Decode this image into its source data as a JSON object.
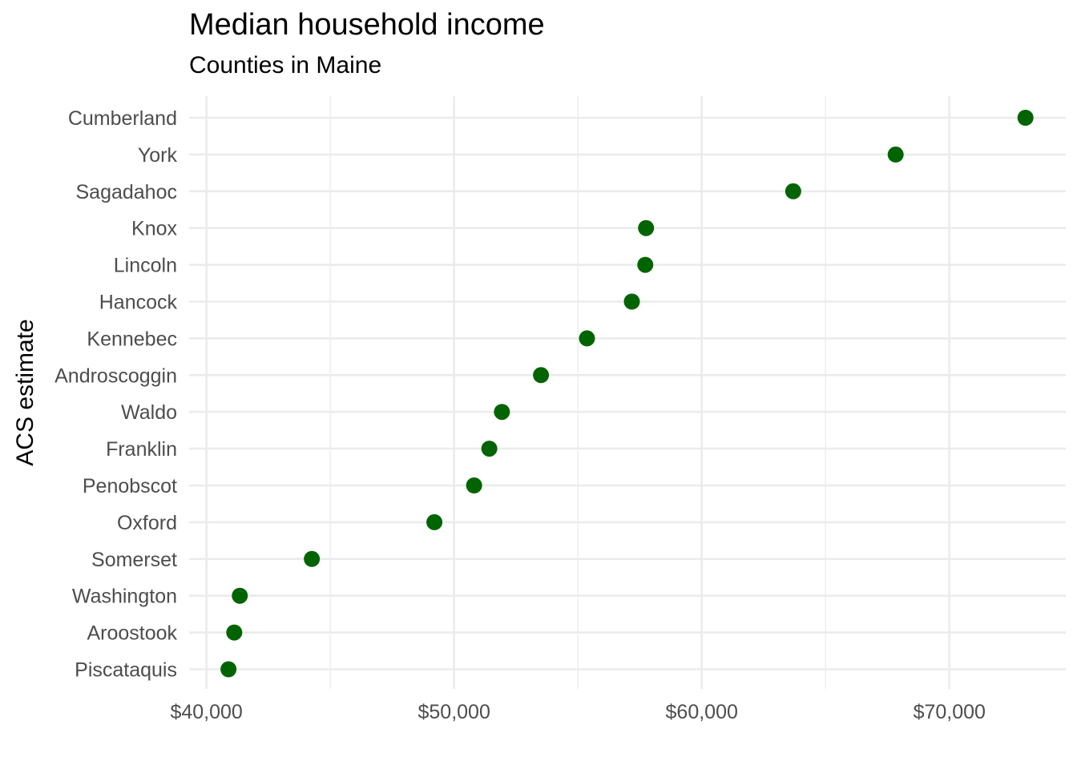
{
  "chart_data": {
    "type": "scatter",
    "title": "Median household income",
    "subtitle": "Counties in Maine",
    "xlabel": "",
    "ylabel": "ACS estimate",
    "categories": [
      "Cumberland",
      "York",
      "Sagadahoc",
      "Knox",
      "Lincoln",
      "Hancock",
      "Kennebec",
      "Androscoggin",
      "Waldo",
      "Franklin",
      "Penobscot",
      "Oxford",
      "Somerset",
      "Washington",
      "Aroostook",
      "Piscataquis"
    ],
    "values": [
      73072,
      67830,
      63694,
      57751,
      57720,
      57178,
      55365,
      53509,
      51931,
      51422,
      50808,
      49204,
      44256,
      41347,
      41123,
      40890
    ],
    "xlim": [
      39300,
      74700
    ],
    "xticks": [
      40000,
      50000,
      60000,
      70000
    ],
    "xtick_labels": [
      "$40,000",
      "$50,000",
      "$60,000",
      "$70,000"
    ],
    "point_color": "#006400",
    "grid": true,
    "legend": "none"
  }
}
